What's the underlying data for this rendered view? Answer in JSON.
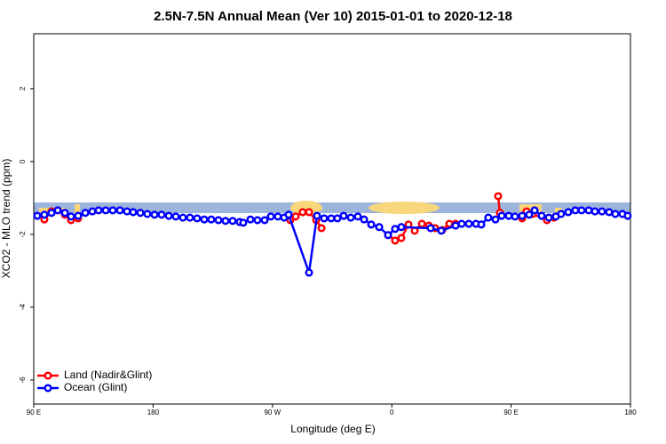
{
  "chart_data": {
    "type": "line",
    "title": "2.5N-7.5N Annual Mean (Ver 10)   2015-01-01 to 2020-12-18",
    "xlabel": "Longitude (deg E)",
    "ylabel": "XCO2 - MLO trend (ppm)",
    "xlim": [
      90,
      540
    ],
    "xticks": [
      {
        "value": 90,
        "label": "90 E"
      },
      180,
      {
        "value": 270,
        "label": "90 W"
      },
      {
        "value": 360,
        "label": "0"
      },
      {
        "value": 450,
        "label": "90 E"
      },
      {
        "value": 540,
        "label": "180"
      }
    ],
    "ylim": [
      -6.66,
      3.51
    ],
    "yticks": [
      -6,
      -4,
      -2,
      0,
      2
    ],
    "legend": "bottom-left",
    "series": [
      {
        "name": "Land (Nadir&Glint)",
        "color": "#ff0000",
        "x": [
          98.0,
          103.4,
          108.1,
          113.5,
          118.1,
          123.5,
          null,
          283.5,
          287.5,
          292.8,
          297.6,
          303.0,
          307.0,
          null,
          357.2,
          362.5,
          367.2,
          372.6,
          377.3,
          382.7,
          388.0,
          392.7,
          398.1,
          403.4,
          408.1,
          null,
          440.2,
          441.5,
          null,
          458.3,
          461.6,
          466.3,
          477.0,
          482.4
        ],
        "values": [
          -1.59,
          -1.37,
          -1.34,
          -1.46,
          -1.61,
          -1.56,
          null,
          -1.61,
          -1.51,
          -1.39,
          -1.39,
          -1.61,
          -1.83,
          null,
          -2.02,
          -2.17,
          -2.1,
          -1.73,
          -1.9,
          -1.71,
          -1.76,
          -1.83,
          -1.88,
          -1.71,
          -1.71,
          null,
          -0.95,
          -1.41,
          null,
          -1.56,
          -1.37,
          -1.44,
          -1.61,
          -1.54
        ]
      },
      {
        "name": "Ocean (Glint)",
        "color": "#0000ff",
        "x": [
          92.7,
          98.0,
          103.4,
          108.1,
          113.5,
          118.1,
          123.5,
          128.9,
          134.2,
          138.9,
          144.3,
          149.6,
          155.0,
          160.3,
          165.0,
          170.4,
          175.7,
          181.1,
          186.4,
          191.8,
          197.1,
          202.5,
          207.8,
          213.2,
          218.6,
          223.9,
          229.3,
          234.6,
          240.0,
          245.3,
          248.0,
          253.4,
          258.7,
          264.1,
          268.8,
          274.1,
          278.8,
          282.2,
          297.6,
          303.6,
          309.0,
          314.3,
          319.0,
          323.7,
          329.1,
          334.4,
          339.1,
          344.5,
          350.5,
          357.2,
          362.5,
          367.2,
          389.3,
          397.3,
          408.1,
          412.7,
          418.1,
          423.5,
          427.5,
          432.8,
          438.2,
          442.9,
          448.2,
          452.9,
          458.3,
          463.6,
          467.7,
          473.0,
          478.4,
          483.7,
          487.7,
          493.1,
          498.4,
          503.1,
          508.5,
          513.2,
          518.5,
          523.9,
          528.6,
          533.9,
          537.9
        ],
        "values": [
          -1.49,
          -1.46,
          -1.41,
          -1.34,
          -1.41,
          -1.51,
          -1.49,
          -1.41,
          -1.37,
          -1.34,
          -1.34,
          -1.34,
          -1.34,
          -1.37,
          -1.39,
          -1.41,
          -1.44,
          -1.46,
          -1.46,
          -1.49,
          -1.51,
          -1.54,
          -1.54,
          -1.56,
          -1.59,
          -1.59,
          -1.61,
          -1.63,
          -1.63,
          -1.66,
          -1.68,
          -1.59,
          -1.61,
          -1.61,
          -1.51,
          -1.51,
          -1.54,
          -1.46,
          -3.05,
          -1.49,
          -1.56,
          -1.56,
          -1.56,
          -1.49,
          -1.54,
          -1.51,
          -1.59,
          -1.73,
          -1.8,
          -2.02,
          -1.85,
          -1.8,
          -1.83,
          -1.9,
          -1.76,
          -1.71,
          -1.71,
          -1.71,
          -1.73,
          -1.54,
          -1.59,
          -1.49,
          -1.49,
          -1.51,
          -1.49,
          -1.46,
          -1.34,
          -1.49,
          -1.54,
          -1.51,
          -1.44,
          -1.39,
          -1.34,
          -1.34,
          -1.34,
          -1.37,
          -1.37,
          -1.39,
          -1.44,
          -1.44,
          -1.49
        ]
      }
    ]
  }
}
